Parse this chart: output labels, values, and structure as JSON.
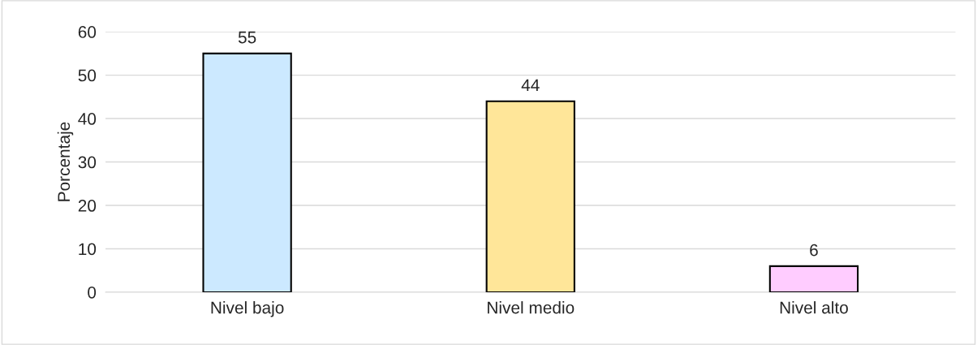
{
  "chart_data": {
    "type": "bar",
    "ylabel": "Porcentaje",
    "categories": [
      "Nivel bajo",
      "Nivel medio",
      "Nivel alto"
    ],
    "values": [
      55,
      44,
      6
    ],
    "colors": [
      "#cce9ff",
      "#ffe699",
      "#ffccff"
    ],
    "ylim": [
      0,
      60
    ],
    "yticks": [
      0,
      10,
      20,
      30,
      40,
      50,
      60
    ],
    "grid": "y",
    "data_labels": true
  }
}
